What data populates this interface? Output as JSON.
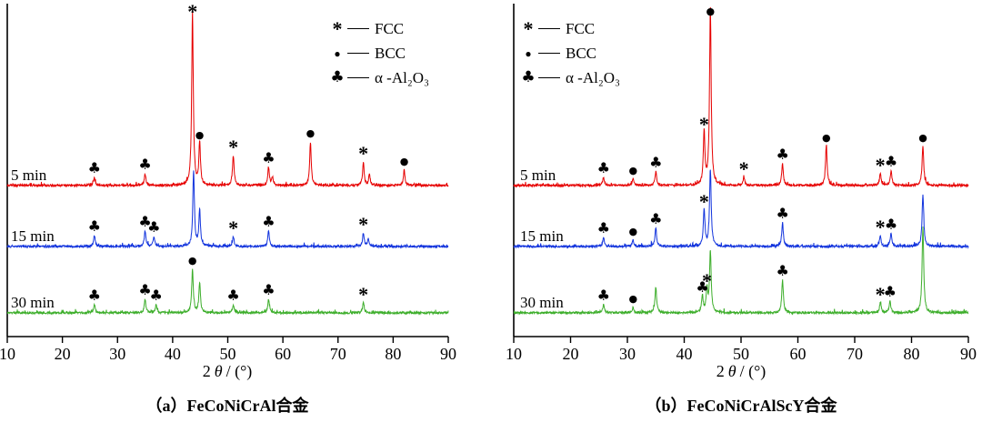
{
  "symbols": {
    "FCC": "*",
    "BCC": "●",
    "Al2O3": "♣"
  },
  "xlabel": {
    "pre": "2",
    "theta": "θ",
    "post": "/ (°)"
  },
  "chart_data": [
    {
      "type": "line",
      "caption": "（a）FeCoNiCrAl合金",
      "xlim": [
        10,
        90
      ],
      "xticks": [
        10,
        20,
        30,
        40,
        50,
        60,
        70,
        80,
        90
      ],
      "x_axis_label": "2θ/(°)",
      "legend": [
        {
          "symbol": "*",
          "label": "FCC"
        },
        {
          "symbol": "●",
          "label": "BCC"
        },
        {
          "symbol": "♣",
          "label": "α -Al₂O₃"
        }
      ],
      "series": [
        {
          "name": "5 min",
          "color": "#e60000",
          "peaks": [
            {
              "two_theta": 25.8,
              "intensity": 9,
              "phase": "Al2O3"
            },
            {
              "two_theta": 35.0,
              "intensity": 13,
              "phase": "Al2O3"
            },
            {
              "two_theta": 43.6,
              "intensity": 192,
              "phase": "FCC"
            },
            {
              "two_theta": 44.9,
              "intensity": 46,
              "phase": "BCC"
            },
            {
              "two_theta": 51.0,
              "intensity": 33,
              "phase": "FCC"
            },
            {
              "two_theta": 57.4,
              "intensity": 20,
              "phase": "Al2O3"
            },
            {
              "two_theta": 58.1,
              "intensity": 9
            },
            {
              "two_theta": 65.0,
              "intensity": 48,
              "phase": "BCC"
            },
            {
              "two_theta": 74.6,
              "intensity": 26,
              "phase": "FCC"
            },
            {
              "two_theta": 75.7,
              "intensity": 12
            },
            {
              "two_theta": 82.0,
              "intensity": 17,
              "phase": "BCC"
            }
          ]
        },
        {
          "name": "15 min",
          "color": "#1133dd",
          "peaks": [
            {
              "two_theta": 25.8,
              "intensity": 12,
              "phase": "Al2O3"
            },
            {
              "two_theta": 35.0,
              "intensity": 17,
              "phase": "Al2O3"
            },
            {
              "two_theta": 36.6,
              "intensity": 11,
              "phase": "Al2O3"
            },
            {
              "two_theta": 43.8,
              "intensity": 82
            },
            {
              "two_theta": 44.9,
              "intensity": 40
            },
            {
              "two_theta": 51.0,
              "intensity": 11,
              "phase": "FCC"
            },
            {
              "two_theta": 57.4,
              "intensity": 17,
              "phase": "Al2O3"
            },
            {
              "two_theta": 74.6,
              "intensity": 15,
              "phase": "FCC"
            },
            {
              "two_theta": 75.5,
              "intensity": 8
            }
          ]
        },
        {
          "name": "30 min",
          "color": "#3dae2b",
          "peaks": [
            {
              "two_theta": 25.8,
              "intensity": 9,
              "phase": "Al2O3"
            },
            {
              "two_theta": 35.0,
              "intensity": 15,
              "phase": "Al2O3"
            },
            {
              "two_theta": 37.0,
              "intensity": 9,
              "phase": "Al2O3"
            },
            {
              "two_theta": 43.6,
              "intensity": 48,
              "phase": "BCC"
            },
            {
              "two_theta": 44.9,
              "intensity": 33
            },
            {
              "two_theta": 51.0,
              "intensity": 9,
              "phase": "Al2O3"
            },
            {
              "two_theta": 57.4,
              "intensity": 15,
              "phase": "Al2O3"
            },
            {
              "two_theta": 74.6,
              "intensity": 11,
              "phase": "FCC"
            }
          ]
        }
      ]
    },
    {
      "type": "line",
      "caption": "（b）FeCoNiCrAlScY合金",
      "xlim": [
        10,
        90
      ],
      "xticks": [
        10,
        20,
        30,
        40,
        50,
        60,
        70,
        80,
        90
      ],
      "x_axis_label": "2θ/(°)",
      "legend": [
        {
          "symbol": "*",
          "label": "FCC"
        },
        {
          "symbol": "●",
          "label": "BCC"
        },
        {
          "symbol": "♣",
          "label": "α -Al₂O₃"
        }
      ],
      "series": [
        {
          "name": "5 min",
          "color": "#e60000",
          "peaks": [
            {
              "two_theta": 25.8,
              "intensity": 9,
              "phase": "Al2O3"
            },
            {
              "two_theta": 31.0,
              "intensity": 7,
              "phase": "BCC"
            },
            {
              "two_theta": 35.0,
              "intensity": 15,
              "phase": "Al2O3"
            },
            {
              "two_theta": 43.5,
              "intensity": 58,
              "phase": "FCC"
            },
            {
              "two_theta": 44.6,
              "intensity": 195,
              "phase": "BCC"
            },
            {
              "two_theta": 50.5,
              "intensity": 9,
              "phase": "FCC"
            },
            {
              "two_theta": 57.3,
              "intensity": 24,
              "phase": "Al2O3"
            },
            {
              "two_theta": 65.0,
              "intensity": 43,
              "phase": "BCC"
            },
            {
              "two_theta": 74.5,
              "intensity": 13,
              "phase": "FCC"
            },
            {
              "two_theta": 76.4,
              "intensity": 16,
              "phase": "Al2O3"
            },
            {
              "two_theta": 82.0,
              "intensity": 43,
              "phase": "BCC"
            }
          ]
        },
        {
          "name": "15 min",
          "color": "#1133dd",
          "peaks": [
            {
              "two_theta": 25.8,
              "intensity": 10,
              "phase": "Al2O3"
            },
            {
              "two_theta": 31.0,
              "intensity": 7,
              "phase": "BCC"
            },
            {
              "two_theta": 35.0,
              "intensity": 20,
              "phase": "Al2O3"
            },
            {
              "two_theta": 43.5,
              "intensity": 40,
              "phase": "FCC"
            },
            {
              "two_theta": 44.6,
              "intensity": 85
            },
            {
              "two_theta": 57.3,
              "intensity": 26,
              "phase": "Al2O3"
            },
            {
              "two_theta": 74.5,
              "intensity": 12,
              "phase": "FCC"
            },
            {
              "two_theta": 76.4,
              "intensity": 14,
              "phase": "Al2O3"
            },
            {
              "two_theta": 82.0,
              "intensity": 58
            }
          ]
        },
        {
          "name": "30 min",
          "color": "#3dae2b",
          "peaks": [
            {
              "two_theta": 25.8,
              "intensity": 9,
              "phase": "Al2O3"
            },
            {
              "two_theta": 31.0,
              "intensity": 6,
              "phase": "BCC"
            },
            {
              "two_theta": 35.0,
              "intensity": 28
            },
            {
              "two_theta": 43.2,
              "intensity": 18,
              "phase": "Al2O3"
            },
            {
              "two_theta": 44.0,
              "intensity": 26,
              "phase": "FCC"
            },
            {
              "two_theta": 44.6,
              "intensity": 68
            },
            {
              "two_theta": 57.3,
              "intensity": 36,
              "phase": "Al2O3"
            },
            {
              "two_theta": 74.5,
              "intensity": 11,
              "phase": "FCC"
            },
            {
              "two_theta": 76.2,
              "intensity": 13,
              "phase": "Al2O3"
            },
            {
              "two_theta": 82.0,
              "intensity": 95
            }
          ]
        }
      ]
    }
  ]
}
